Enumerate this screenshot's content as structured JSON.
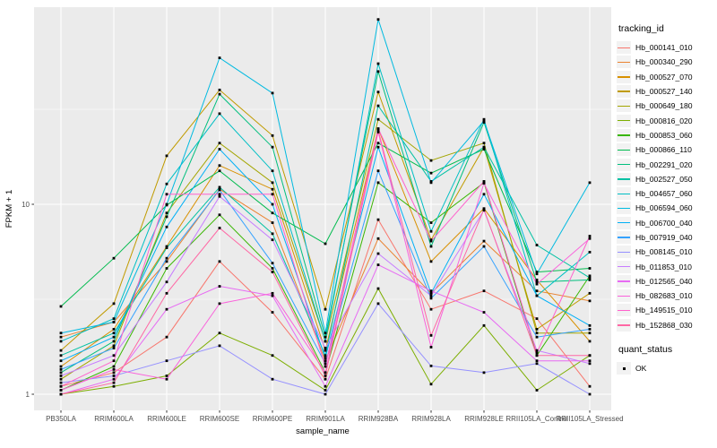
{
  "chart_data": {
    "type": "line",
    "title": "",
    "xlabel": "sample_name",
    "ylabel": "FPKM + 1",
    "x_categories": [
      "PB350LA",
      "RRIM600LA",
      "RRIM600LE",
      "RRIM600SE",
      "RRIM600PE",
      "RRIM901LA",
      "RRIM928BA",
      "RRIM928LA",
      "RRIM928LE",
      "RRII105LA_Control",
      "RRII105LA_Stressed"
    ],
    "y_scale": "log10",
    "y_ticks": [
      1,
      10
    ],
    "y_tick_labels": [
      "1",
      "10"
    ],
    "y_minor_ticks": [
      3.162,
      31.62
    ],
    "ylim": [
      0.83,
      110
    ],
    "grid": true,
    "panel_bg": "#EBEBEB",
    "grid_color": "#FFFFFF",
    "point_color": "#000000",
    "point_shape": "square",
    "tick_label_color": "#4D4D4D",
    "legend_position": "right",
    "legend_title": "tracking_id",
    "quant_legend_title": "quant_status",
    "quant_legend_items": [
      {
        "label": "OK",
        "marker": "black-square"
      }
    ],
    "series": [
      {
        "name": "Hb_000141_010",
        "color": "#F8766D",
        "values": [
          1.1,
          1.3,
          2.0,
          5.0,
          2.7,
          1.2,
          8.3,
          2.8,
          3.5,
          2.5,
          1.1
        ]
      },
      {
        "name": "Hb_000340_290",
        "color": "#EA8331",
        "values": [
          2.0,
          2.4,
          5.0,
          12.0,
          8.0,
          1.5,
          6.6,
          3.4,
          6.4,
          3.5,
          3.1
        ]
      },
      {
        "name": "Hb_000527_070",
        "color": "#D89000",
        "values": [
          1.4,
          2.2,
          6.0,
          16.0,
          12.0,
          1.7,
          25.0,
          5.0,
          9.5,
          4.0,
          1.9
        ]
      },
      {
        "name": "Hb_000527_140",
        "color": "#C09B00",
        "values": [
          1.7,
          3.0,
          18.0,
          40.0,
          23.0,
          2.8,
          39.0,
          6.5,
          20.0,
          2.2,
          3.4
        ]
      },
      {
        "name": "Hb_000649_180",
        "color": "#A3A500",
        "values": [
          1.2,
          1.8,
          9.0,
          21.0,
          13.0,
          1.9,
          28.0,
          17.0,
          21.0,
          2.1,
          2.1
        ]
      },
      {
        "name": "Hb_000816_020",
        "color": "#7CAE00",
        "values": [
          1.0,
          1.1,
          1.25,
          2.1,
          1.6,
          1.05,
          3.6,
          1.13,
          2.3,
          1.05,
          1.6
        ]
      },
      {
        "name": "Hb_000853_060",
        "color": "#39B600",
        "values": [
          1.05,
          1.4,
          4.6,
          8.8,
          4.6,
          1.3,
          13.0,
          8.0,
          13.0,
          1.6,
          4.2
        ]
      },
      {
        "name": "Hb_000866_110",
        "color": "#00BB4E",
        "values": [
          2.9,
          5.2,
          9.9,
          15.0,
          9.0,
          6.2,
          21.0,
          14.6,
          19.5,
          4.4,
          4.6
        ]
      },
      {
        "name": "Hb_002291_020",
        "color": "#00BF7D",
        "values": [
          1.3,
          1.9,
          8.6,
          38.0,
          20.0,
          2.0,
          50.0,
          6.0,
          27.0,
          3.9,
          4.0
        ]
      },
      {
        "name": "Hb_002527_050",
        "color": "#00C1A3",
        "values": [
          1.6,
          2.1,
          5.9,
          12.3,
          7.0,
          1.6,
          33.0,
          13.2,
          20.0,
          6.1,
          4.1
        ]
      },
      {
        "name": "Hb_004657_060",
        "color": "#00BFC4",
        "values": [
          1.9,
          2.5,
          12.8,
          30.0,
          15.0,
          1.9,
          55.0,
          7.2,
          28.0,
          3.3,
          5.6
        ]
      },
      {
        "name": "Hb_006594_060",
        "color": "#00BAE0",
        "values": [
          2.1,
          2.4,
          10.0,
          59.0,
          38.5,
          2.1,
          94.0,
          13.0,
          27.5,
          4.3,
          13.0
        ]
      },
      {
        "name": "Hb_006700_040",
        "color": "#00B0F6",
        "values": [
          1.5,
          2.0,
          7.6,
          19.5,
          10.0,
          1.55,
          20.0,
          3.4,
          11.3,
          3.3,
          2.3
        ]
      },
      {
        "name": "Hb_007919_040",
        "color": "#35A2FF",
        "values": [
          1.35,
          1.75,
          5.2,
          11.9,
          4.9,
          1.45,
          15.0,
          3.2,
          6.0,
          2.0,
          2.2
        ]
      },
      {
        "name": "Hb_008145_010",
        "color": "#9590FF",
        "values": [
          1.15,
          1.25,
          1.5,
          1.8,
          1.2,
          1.0,
          3.0,
          1.41,
          1.3,
          1.45,
          1.0
        ]
      },
      {
        "name": "Hb_011853_010",
        "color": "#C77CFF",
        "values": [
          1.25,
          1.6,
          3.9,
          11.0,
          6.5,
          1.75,
          5.5,
          3.3,
          9.3,
          1.7,
          1.45
        ]
      },
      {
        "name": "Hb_012565_040",
        "color": "#E76BF3",
        "values": [
          1.0,
          1.2,
          2.8,
          3.7,
          3.3,
          1.1,
          4.8,
          3.5,
          2.7,
          1.5,
          1.5
        ]
      },
      {
        "name": "Hb_082683_010",
        "color": "#FA62DB",
        "values": [
          1.05,
          1.35,
          1.2,
          3.0,
          3.4,
          1.3,
          24.0,
          1.77,
          12.9,
          3.8,
          6.6
        ]
      },
      {
        "name": "Hb_149515_010",
        "color": "#FF61CC",
        "values": [
          1.1,
          1.5,
          11.3,
          11.3,
          11.3,
          1.4,
          25.0,
          6.4,
          13.2,
          1.65,
          6.8
        ]
      },
      {
        "name": "Hb_152868_030",
        "color": "#FF67A4",
        "values": [
          1.0,
          1.15,
          3.4,
          7.5,
          4.4,
          1.25,
          24.5,
          2.04,
          9.4,
          1.6,
          1.6
        ]
      }
    ]
  }
}
